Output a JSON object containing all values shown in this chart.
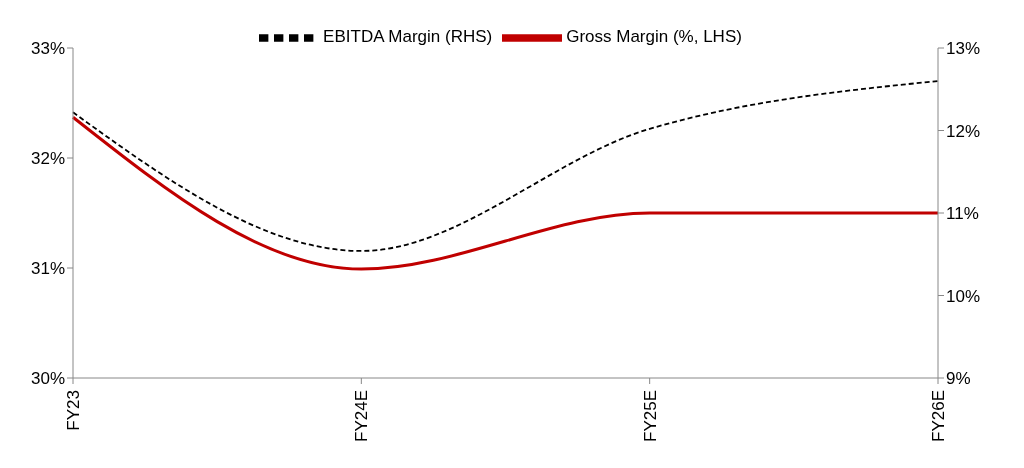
{
  "chart_data": {
    "type": "line",
    "categories": [
      "FY23",
      "FY24E",
      "FY25E",
      "FY26E"
    ],
    "series": [
      {
        "name": "Gross Margin (%, LHS)",
        "color": "#c00000",
        "values": [
          32.37,
          30.99,
          31.5,
          31.5
        ],
        "line_style": "solid"
      },
      {
        "name": "EBITDA Margin (RHS)",
        "color": "#000000",
        "values": [
          12.22,
          10.54,
          12.02,
          12.6
        ],
        "axis": "y2",
        "line_style": "dashed"
      }
    ],
    "ylim": [
      30,
      33
    ],
    "yticks": [
      {
        "value": 30,
        "label": "30%"
      },
      {
        "value": 31,
        "label": "31%"
      },
      {
        "value": 32,
        "label": "32%"
      },
      {
        "value": 33,
        "label": "33%"
      }
    ],
    "y2lim": [
      9,
      13
    ],
    "y2ticks": [
      {
        "value": 9,
        "label": "9%"
      },
      {
        "value": 10,
        "label": "10%"
      },
      {
        "value": 11,
        "label": "11%"
      },
      {
        "value": 12,
        "label": "12%"
      },
      {
        "value": 13,
        "label": "13%"
      }
    ],
    "grid": false,
    "legend": "top",
    "marker": "none"
  }
}
